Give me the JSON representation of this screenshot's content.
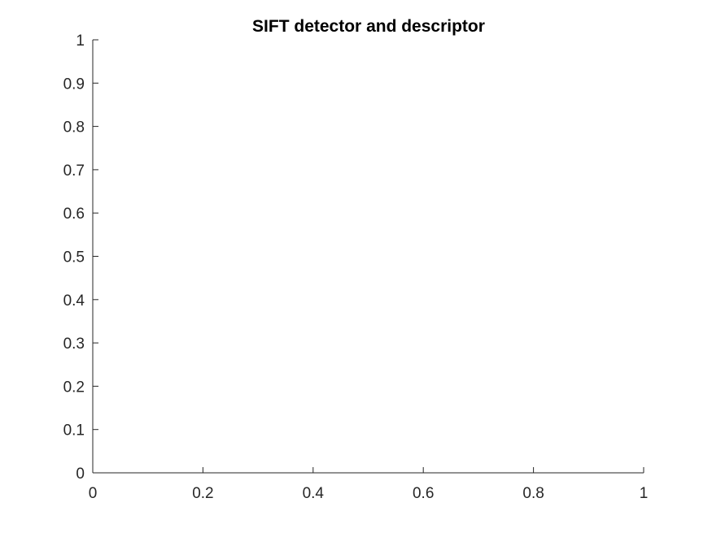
{
  "chart_data": {
    "type": "line",
    "title": "SIFT detector and descriptor",
    "xlabel": "",
    "ylabel": "",
    "xlim": [
      0,
      1
    ],
    "ylim": [
      0,
      1
    ],
    "xticks": [
      0,
      0.2,
      0.4,
      0.6,
      0.8,
      1
    ],
    "xtick_labels": [
      "0",
      "0.2",
      "0.4",
      "0.6",
      "0.8",
      "1"
    ],
    "yticks": [
      0,
      0.1,
      0.2,
      0.3,
      0.4,
      0.5,
      0.6,
      0.7,
      0.8,
      0.9,
      1
    ],
    "ytick_labels": [
      "0",
      "0.1",
      "0.2",
      "0.3",
      "0.4",
      "0.5",
      "0.6",
      "0.7",
      "0.8",
      "0.9",
      "1"
    ],
    "series": [],
    "grid": false,
    "box": false,
    "axis_color": "#262626",
    "title_color": "#000000",
    "background": "#ffffff"
  }
}
